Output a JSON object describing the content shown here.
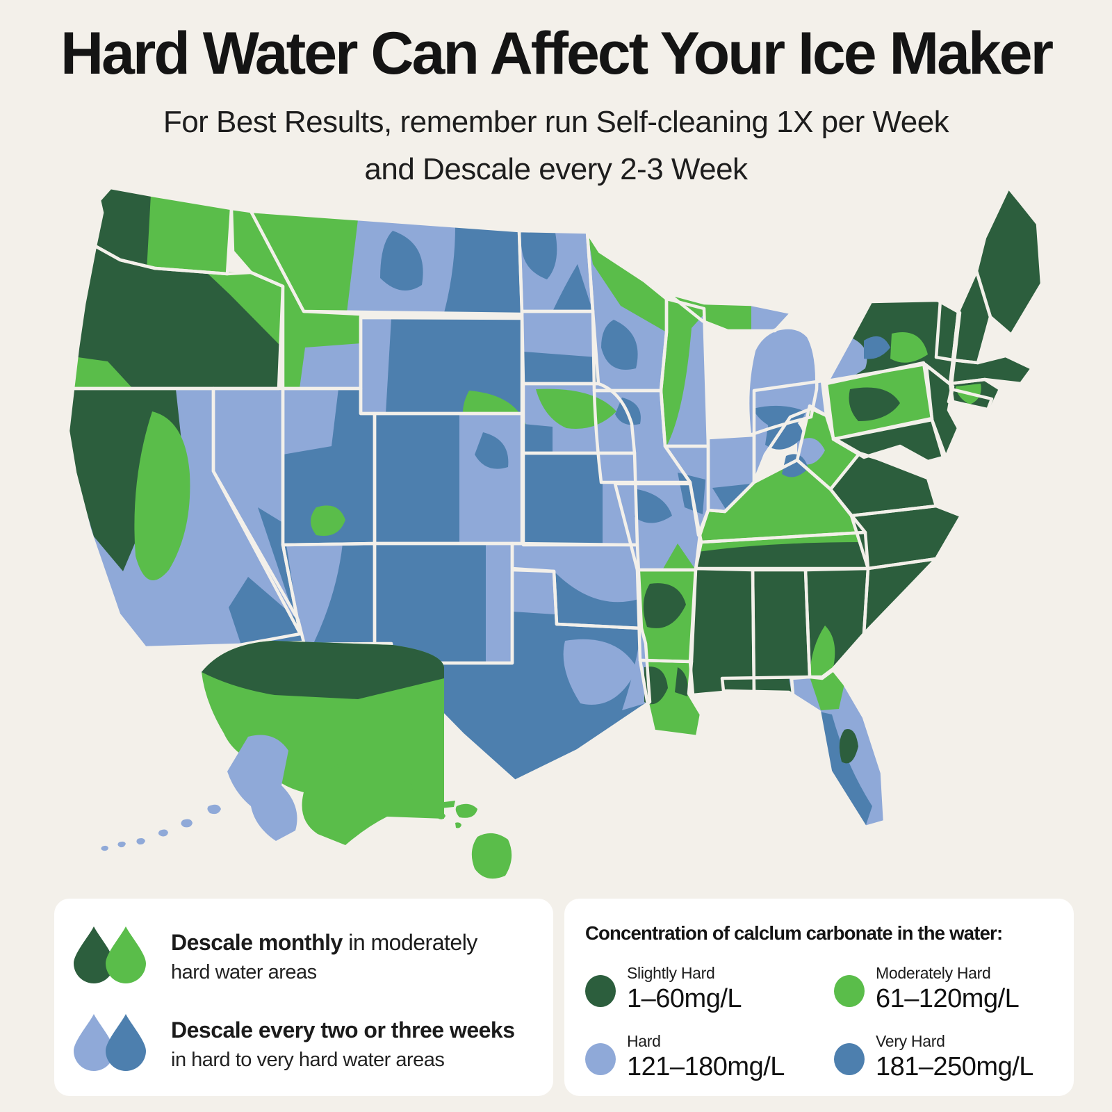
{
  "page": {
    "background": "#f3f0ea",
    "card_background": "#ffffff",
    "text_color": "#171717"
  },
  "header": {
    "title": "Hard Water Can Affect Your Ice Maker",
    "subtitle_line1": "For Best Results, remember run Self-cleaning 1X per Week",
    "subtitle_line2": "and Descale every 2-3 Week"
  },
  "map": {
    "palette": {
      "slightly_hard": "#2c5e3d",
      "moderately_hard": "#5abd4a",
      "hard": "#8fa9d8",
      "very_hard": "#4d7fae",
      "water_background": "#f3f0ea",
      "state_border": "#f3f0ea"
    },
    "dominant_hardness_by_state": {
      "WA": "moderately_hard",
      "OR": "slightly_hard",
      "CA": "hard",
      "NV": "hard",
      "ID": "moderately_hard",
      "MT": "hard",
      "WY": "very_hard",
      "UT": "very_hard",
      "CO": "very_hard",
      "AZ": "hard",
      "NM": "very_hard",
      "ND": "hard",
      "SD": "hard",
      "NE": "hard",
      "KS": "very_hard",
      "OK": "hard",
      "TX": "very_hard",
      "MN": "hard",
      "IA": "hard",
      "MO": "hard",
      "WI": "moderately_hard",
      "MI": "hard",
      "IL": "hard",
      "IN": "hard",
      "OH": "hard",
      "KY": "moderately_hard",
      "TN": "slightly_hard",
      "AR": "moderately_hard",
      "LA": "moderately_hard",
      "MS": "slightly_hard",
      "AL": "slightly_hard",
      "GA": "slightly_hard",
      "FL": "hard",
      "SC": "slightly_hard",
      "NC": "slightly_hard",
      "VA": "slightly_hard",
      "WV": "moderately_hard",
      "MD": "slightly_hard",
      "PA": "moderately_hard",
      "NJ": "slightly_hard",
      "NY": "slightly_hard",
      "CT": "moderately_hard",
      "MA": "slightly_hard",
      "VT": "slightly_hard",
      "NH": "slightly_hard",
      "ME": "slightly_hard",
      "AK": "moderately_hard",
      "HI": "moderately_hard"
    }
  },
  "legend_card": {
    "items": [
      {
        "icon": "green-water-drops",
        "drop_color_left": "#2c5e3d",
        "drop_color_right": "#5abd4a",
        "bold": "Descale monthly",
        "normal": " in moderately",
        "line2": "hard water areas"
      },
      {
        "icon": "blue-water-drops",
        "drop_color_left": "#8fa9d8",
        "drop_color_right": "#4d7fae",
        "bold": "Descale every two or three weeks",
        "normal": "",
        "line2": "in hard to very hard water areas"
      }
    ]
  },
  "concentration_card": {
    "heading": "Concentration of calclum carbonate in the water:",
    "items": [
      {
        "label": "Slightly Hard",
        "value": "1–60mg/L",
        "color": "#2c5e3d"
      },
      {
        "label": "Moderately Hard",
        "value": "61–120mg/L",
        "color": "#5abd4a"
      },
      {
        "label": "Hard",
        "value": "121–180mg/L",
        "color": "#8fa9d8"
      },
      {
        "label": "Very Hard",
        "value": "181–250mg/L",
        "color": "#4d7fae"
      }
    ]
  }
}
